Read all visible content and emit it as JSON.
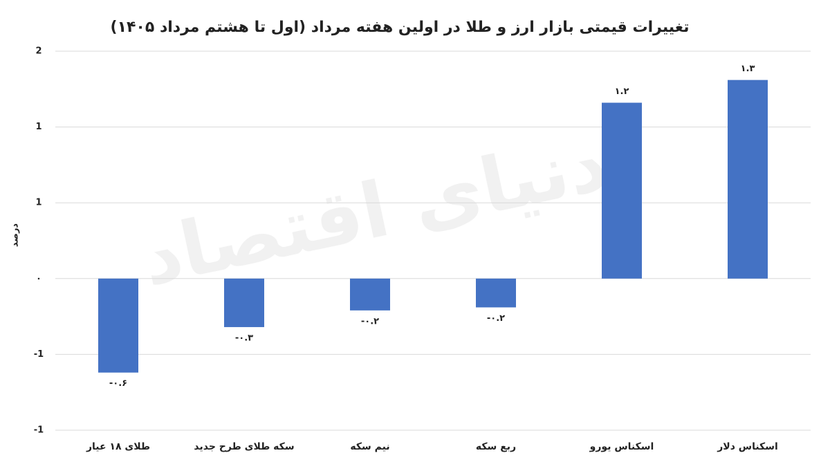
{
  "chart_data": {
    "type": "bar",
    "title": "تغییرات قیمتی بازار ارز و طلا در اولین هفته مرداد (اول تا هشتم مرداد ۱۴۰۵)",
    "y_label": "درصد",
    "watermark": "دنیای اقتصاد",
    "categories": [
      "طلای ۱۸ عیار",
      "سکه طلای طرح جدید",
      "نیم سکه",
      "ربع سکه",
      "اسکناس یورو",
      "اسکناس دلار"
    ],
    "values": [
      -0.62,
      -0.32,
      -0.21,
      -0.19,
      1.16,
      1.31
    ],
    "value_labels": [
      "-۰.۶",
      "-۰.۳",
      "-۰.۲",
      "-۰.۲",
      "۱.۲",
      "۱.۳"
    ],
    "color": "#4472c4",
    "ylim": [
      -1,
      1.5
    ],
    "yticks": [
      {
        "value": -1,
        "label": "-1"
      },
      {
        "value": -0.5,
        "label": "-1"
      },
      {
        "value": 0,
        "label": "۰"
      },
      {
        "value": 0.5,
        "label": "1"
      },
      1,
      {
        "value": 1.5,
        "label": "2"
      }
    ],
    "grid": true
  }
}
